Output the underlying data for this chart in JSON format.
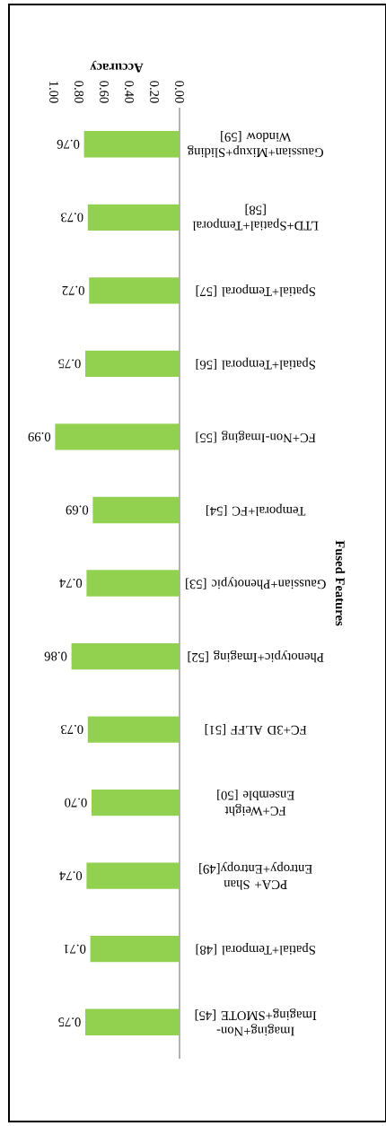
{
  "chart_data": {
    "type": "bar",
    "orientation": "horizontal",
    "xlabel": "Accuracy",
    "ylabel": "Fused Features",
    "categories": [
      "Gaussian+Mixup+Sliding Window [59]",
      "LTD+Spatial+Temporal [58]",
      "Spatial+Temporal [57]",
      "Spatial+Temporal [56]",
      "FC+Non-Imaging [55]",
      "Temporal+FC [54]",
      "Gaussian+Phenotypic [53]",
      "Phenotypic+Imaging [52]",
      "FC+3D ALFF [51]",
      "FC+Weight Ensemble [50]",
      "PCA+ Shan Entropy+Entropy[49]",
      "Spatial+Temporal [48]",
      "Imaging+Non-Imaging+SMOTE [45]"
    ],
    "values": [
      0.76,
      0.73,
      0.72,
      0.75,
      0.99,
      0.69,
      0.74,
      0.86,
      0.73,
      0.7,
      0.74,
      0.71,
      0.75
    ],
    "value_labels": [
      "0.76",
      "0.73",
      "0.72",
      "0.75",
      "0.99",
      "0.69",
      "0.74",
      "0.86",
      "0.73",
      "0.70",
      "0.74",
      "0.71",
      "0.75"
    ],
    "color": "#92d050",
    "xlim": [
      1,
      0
    ],
    "xticks": [
      {
        "value": 0,
        "label": "0.00"
      },
      {
        "value": 0.2,
        "label": "0.20"
      },
      {
        "value": 0.4,
        "label": "0.40"
      },
      {
        "value": 0.6,
        "label": "0.60"
      },
      {
        "value": 0.8,
        "label": "0.80"
      },
      {
        "value": 1,
        "label": "1.00"
      }
    ]
  }
}
